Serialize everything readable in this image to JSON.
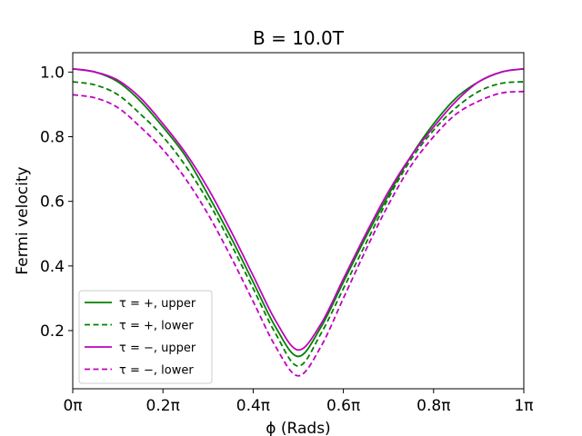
{
  "chart_data": {
    "type": "line",
    "title": "B = 10.0T",
    "xlabel": "ϕ (Rads)",
    "ylabel": "Fermi velocity",
    "xlim": [
      0,
      1
    ],
    "ylim": [
      0.02,
      1.06
    ],
    "xticks": [
      0,
      0.2,
      0.4,
      0.6,
      0.8,
      1.0
    ],
    "xtick_labels": [
      "0π",
      "0.2π",
      "0.4π",
      "0.6π",
      "0.8π",
      "1π"
    ],
    "yticks": [
      0.2,
      0.4,
      0.6,
      0.8,
      1.0
    ],
    "ytick_labels": [
      "0.2",
      "0.4",
      "0.6",
      "0.8",
      "1.0"
    ],
    "grid": false,
    "legend_position": "lower-left",
    "x": [
      0,
      0.05,
      0.1,
      0.15,
      0.2,
      0.25,
      0.3,
      0.35,
      0.4,
      0.45,
      0.5,
      0.55,
      0.6,
      0.65,
      0.7,
      0.75,
      0.8,
      0.85,
      0.9,
      0.95,
      1.0
    ],
    "series": [
      {
        "name": "τ = +, upper",
        "color": "#008000",
        "dash": "solid",
        "values": [
          1.01,
          1.0,
          0.97,
          0.91,
          0.83,
          0.74,
          0.62,
          0.49,
          0.35,
          0.21,
          0.12,
          0.21,
          0.35,
          0.49,
          0.62,
          0.74,
          0.84,
          0.92,
          0.97,
          1.0,
          1.01
        ]
      },
      {
        "name": "τ = +, lower",
        "color": "#008000",
        "dash": "dashed",
        "values": [
          0.97,
          0.96,
          0.93,
          0.87,
          0.8,
          0.71,
          0.6,
          0.47,
          0.33,
          0.19,
          0.09,
          0.19,
          0.33,
          0.47,
          0.61,
          0.73,
          0.82,
          0.89,
          0.94,
          0.965,
          0.97
        ]
      },
      {
        "name": "τ = −, upper",
        "color": "#c000c0",
        "dash": "solid",
        "values": [
          1.01,
          1.0,
          0.975,
          0.92,
          0.84,
          0.75,
          0.64,
          0.51,
          0.37,
          0.23,
          0.14,
          0.22,
          0.36,
          0.5,
          0.63,
          0.74,
          0.83,
          0.91,
          0.97,
          1.0,
          1.01
        ]
      },
      {
        "name": "τ = −, lower",
        "color": "#c000c0",
        "dash": "dashed",
        "values": [
          0.93,
          0.92,
          0.89,
          0.83,
          0.76,
          0.67,
          0.56,
          0.43,
          0.29,
          0.15,
          0.06,
          0.15,
          0.3,
          0.45,
          0.59,
          0.71,
          0.8,
          0.87,
          0.91,
          0.935,
          0.94
        ]
      }
    ]
  }
}
